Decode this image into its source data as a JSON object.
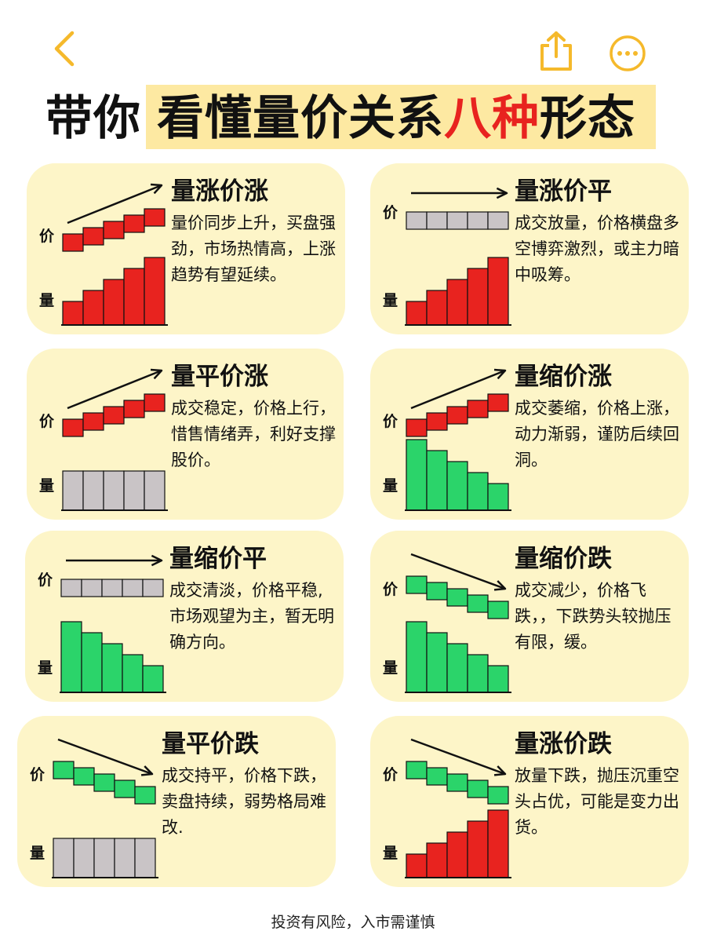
{
  "title": {
    "prefix": "带你",
    "main": "看懂量价关系",
    "highlight": "八种",
    "suffix": "形态"
  },
  "axis": {
    "price": "价",
    "volume": "量"
  },
  "colors": {
    "red": "#e8231f",
    "green": "#2bd46a",
    "gray": "#c9c4c6",
    "card": "#fdf5c8",
    "accent": "#f5b92b"
  },
  "cards": [
    {
      "heading": "量涨价涨",
      "body": "量价同步上升，买盘强劲，市场热情高，上涨趋势有望延续。",
      "price_trend": "up",
      "price_color": "red",
      "volume_trend": "up",
      "volume_color": "red"
    },
    {
      "heading": "量涨价平",
      "body": "成交放量，价格横盘多空博弈激烈，或主力暗中吸筹。",
      "price_trend": "flat",
      "price_color": "gray",
      "volume_trend": "up",
      "volume_color": "red"
    },
    {
      "heading": "量平价涨",
      "body": "成交稳定，价格上行，惜售情绪弄，利好支撑股价。",
      "price_trend": "up",
      "price_color": "red",
      "volume_trend": "flat",
      "volume_color": "gray"
    },
    {
      "heading": "量缩价涨",
      "body": "成交萎缩，价格上涨，动力渐弱，谨防后续回洞。",
      "price_trend": "up",
      "price_color": "red",
      "volume_trend": "down",
      "volume_color": "green"
    },
    {
      "heading": "量缩价平",
      "body": "成交清淡，价格平稳,市场观望为主，暂无明确方向。",
      "price_trend": "flat",
      "price_color": "gray",
      "volume_trend": "down",
      "volume_color": "green"
    },
    {
      "heading": "量缩价跌",
      "body": "成交减少，价格飞跌，，下跌势头较抛压有限，缓。",
      "price_trend": "down",
      "price_color": "green",
      "volume_trend": "down",
      "volume_color": "green"
    },
    {
      "heading": "量平价跌",
      "body": "成交持平，价格下跌，卖盘持续，弱势格局难改.",
      "price_trend": "down",
      "price_color": "green",
      "volume_trend": "flat",
      "volume_color": "gray"
    },
    {
      "heading": "量涨价跌",
      "body": "放量下跌，抛压沉重空头占优，可能是变力出货。",
      "price_trend": "down",
      "price_color": "green",
      "volume_trend": "up",
      "volume_color": "red"
    }
  ],
  "footer": "投资有风险，入市需谨慎",
  "icons": {
    "back": "chevron-left-icon",
    "share": "share-icon",
    "more": "more-icon"
  }
}
